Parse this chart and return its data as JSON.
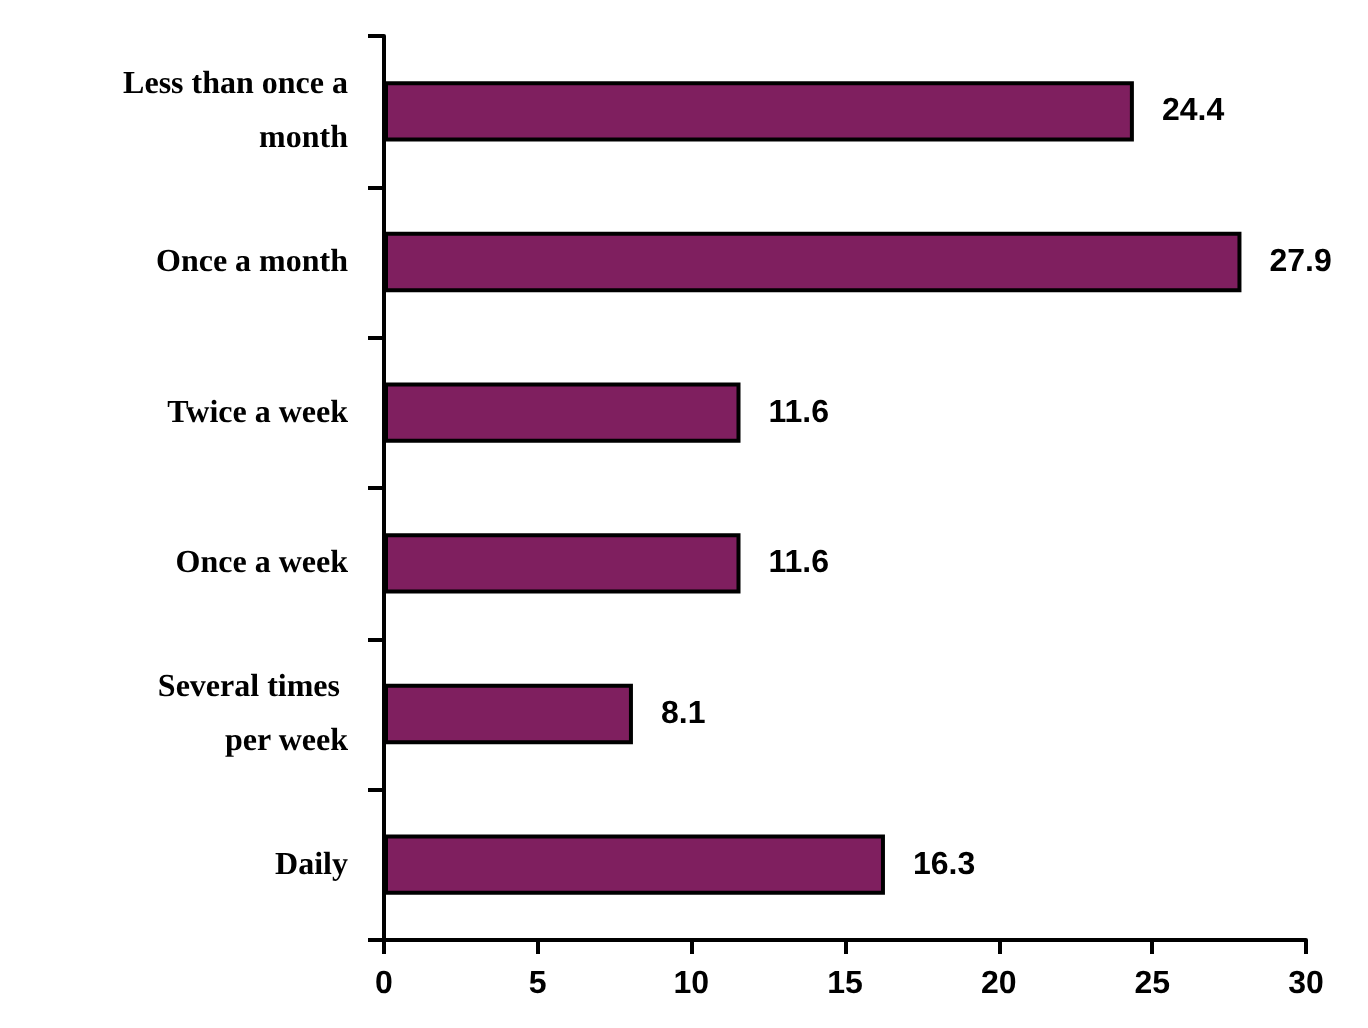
{
  "chart_data": {
    "type": "bar",
    "orientation": "horizontal",
    "categories": [
      "Less than once a month",
      "Once a month",
      "Twice a week",
      "Once a week",
      "Several times per week",
      "Daily"
    ],
    "values": [
      24.4,
      27.9,
      11.6,
      11.6,
      8.1,
      16.3
    ],
    "color": "#7f1f5f",
    "xlim": [
      0,
      30
    ],
    "xticks": [
      0,
      5,
      10,
      15,
      20,
      25,
      30
    ],
    "data_labels": true
  }
}
